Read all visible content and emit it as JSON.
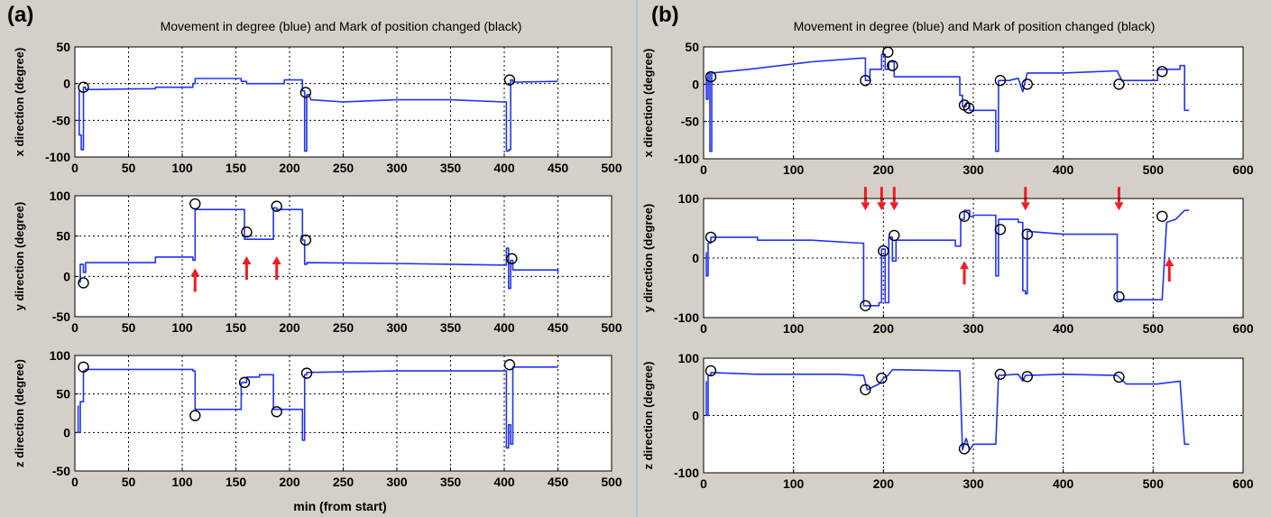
{
  "colors": {
    "background": "#d4d0c8",
    "series": "#2233ee",
    "marker": "#000000",
    "arrow": "#ee1c24",
    "plot_bg": "#ffffff"
  },
  "panels": [
    {
      "letter": "(a)",
      "title": "Movement in degree (blue) and Mark of position changed (black)",
      "xlabel": "min (from start)"
    },
    {
      "letter": "(b)",
      "title": "Movement in degree (blue) and Mark of position changed (black)",
      "xlabel": "min (from start)"
    }
  ],
  "chart_data": [
    {
      "type": "line",
      "panel": "(a)",
      "ylabel": "x direction (degree)",
      "xlim": [
        0,
        500
      ],
      "ylim": [
        -100,
        50
      ],
      "xticks": [
        0,
        50,
        100,
        150,
        200,
        250,
        300,
        350,
        400,
        450,
        500
      ],
      "yticks": [
        -100,
        -50,
        0,
        50
      ],
      "grid": true,
      "series": [
        {
          "x": [
            4,
            4,
            6,
            6,
            8,
            8,
            10,
            10,
            20,
            60,
            75,
            75,
            110,
            110,
            112,
            112,
            155,
            155,
            160,
            160,
            195,
            195,
            212,
            212,
            214,
            214,
            216,
            216,
            218,
            220,
            250,
            300,
            350,
            400,
            402,
            402,
            404,
            404,
            406,
            406,
            408,
            408,
            410,
            450
          ],
          "y": [
            -10,
            -70,
            -70,
            -90,
            -90,
            -5,
            -5,
            -8,
            -8,
            -7,
            -7,
            -5,
            -5,
            0,
            0,
            7,
            7,
            3,
            3,
            0,
            0,
            5,
            5,
            -10,
            -10,
            -92,
            -92,
            -15,
            -15,
            -22,
            -25,
            -22,
            -22,
            -25,
            -25,
            -92,
            -92,
            -90,
            -90,
            5,
            5,
            2,
            2,
            3
          ]
        }
      ],
      "markers": {
        "x": [
          8,
          215,
          405
        ],
        "y": [
          -5,
          -12,
          5
        ]
      },
      "arrows": {
        "x": [],
        "y": [],
        "dir": []
      }
    },
    {
      "type": "line",
      "panel": "(a)",
      "ylabel": "y direction (degree)",
      "xlim": [
        0,
        500
      ],
      "ylim": [
        -50,
        100
      ],
      "xticks": [
        0,
        50,
        100,
        150,
        200,
        250,
        300,
        350,
        400,
        450,
        500
      ],
      "yticks": [
        -50,
        0,
        50,
        100
      ],
      "grid": true,
      "series": [
        {
          "x": [
            5,
            5,
            8,
            8,
            10,
            10,
            75,
            75,
            110,
            110,
            112,
            112,
            158,
            158,
            185,
            185,
            188,
            188,
            212,
            212,
            214,
            214,
            216,
            216,
            300,
            400,
            402,
            402,
            404,
            404,
            406,
            406,
            408,
            408,
            450,
            450
          ],
          "y": [
            -8,
            15,
            15,
            5,
            5,
            17,
            17,
            24,
            24,
            20,
            20,
            83,
            83,
            46,
            46,
            85,
            85,
            83,
            83,
            45,
            45,
            15,
            15,
            17,
            16,
            14,
            14,
            35,
            35,
            -15,
            -15,
            20,
            20,
            8,
            8,
            5
          ]
        }
      ],
      "markers": {
        "x": [
          8,
          112,
          160,
          188,
          215,
          407
        ],
        "y": [
          -8,
          90,
          55,
          87,
          45,
          22
        ]
      },
      "arrows": {
        "x": [
          112,
          160,
          188
        ],
        "y": [
          10,
          25,
          25
        ],
        "dir": [
          "up",
          "up",
          "up"
        ]
      }
    },
    {
      "type": "line",
      "panel": "(a)",
      "ylabel": "z direction (degree)",
      "xlim": [
        0,
        500
      ],
      "ylim": [
        -50,
        100
      ],
      "xticks": [
        0,
        50,
        100,
        150,
        200,
        250,
        300,
        350,
        400,
        450,
        500
      ],
      "yticks": [
        -50,
        0,
        50,
        100
      ],
      "grid": true,
      "series": [
        {
          "x": [
            3,
            3,
            5,
            5,
            8,
            8,
            10,
            10,
            110,
            110,
            112,
            112,
            155,
            155,
            160,
            160,
            172,
            172,
            185,
            185,
            212,
            212,
            214,
            214,
            216,
            216,
            300,
            400,
            402,
            402,
            404,
            404,
            406,
            406,
            408,
            408,
            450
          ],
          "y": [
            35,
            0,
            0,
            40,
            40,
            80,
            80,
            82,
            82,
            80,
            80,
            30,
            30,
            65,
            65,
            72,
            72,
            75,
            75,
            30,
            30,
            -10,
            -10,
            75,
            75,
            78,
            80,
            80,
            80,
            -20,
            -20,
            10,
            10,
            -15,
            -15,
            85,
            85
          ]
        }
      ],
      "markers": {
        "x": [
          8,
          112,
          158,
          188,
          216,
          405
        ],
        "y": [
          85,
          22,
          65,
          27,
          77,
          88
        ]
      },
      "arrows": {
        "x": [],
        "y": [],
        "dir": []
      }
    },
    {
      "type": "line",
      "panel": "(b)",
      "ylabel": "x direction (degree)",
      "xlim": [
        0,
        600
      ],
      "ylim": [
        -100,
        50
      ],
      "xticks": [
        0,
        100,
        200,
        300,
        400,
        500,
        600
      ],
      "yticks": [
        -100,
        -50,
        0,
        50
      ],
      "grid": true,
      "series": [
        {
          "x": [
            3,
            3,
            5,
            5,
            7,
            7,
            9,
            9,
            50,
            120,
            175,
            180,
            180,
            185,
            185,
            198,
            198,
            202,
            202,
            206,
            206,
            212,
            212,
            285,
            285,
            288,
            288,
            292,
            292,
            296,
            296,
            300,
            300,
            325,
            325,
            328,
            328,
            340,
            350,
            350,
            355,
            355,
            360,
            360,
            400,
            460,
            460,
            465,
            465,
            500,
            505,
            505,
            530,
            530,
            535,
            535,
            540
          ],
          "y": [
            10,
            -20,
            -20,
            15,
            15,
            -90,
            -90,
            15,
            20,
            30,
            35,
            35,
            5,
            5,
            20,
            20,
            40,
            40,
            20,
            20,
            30,
            30,
            10,
            10,
            -15,
            -15,
            -30,
            -30,
            -25,
            -25,
            -35,
            -35,
            -35,
            -35,
            -90,
            -90,
            5,
            5,
            8,
            8,
            -10,
            -10,
            15,
            15,
            15,
            18,
            18,
            5,
            5,
            5,
            5,
            20,
            20,
            25,
            25,
            -35,
            -35
          ]
        }
      ],
      "markers": {
        "x": [
          8,
          180,
          205,
          210,
          290,
          295,
          330,
          360,
          462,
          510
        ],
        "y": [
          10,
          5,
          43,
          25,
          -28,
          -32,
          5,
          0,
          0,
          17
        ]
      },
      "arrows": {
        "x": [],
        "y": [],
        "dir": []
      }
    },
    {
      "type": "line",
      "panel": "(b)",
      "ylabel": "y direction (degree)",
      "xlim": [
        0,
        600
      ],
      "ylim": [
        -100,
        100
      ],
      "xticks": [
        0,
        100,
        200,
        300,
        400,
        500,
        600
      ],
      "yticks": [
        -100,
        0,
        100
      ],
      "grid": true,
      "series": [
        {
          "x": [
            3,
            3,
            5,
            5,
            8,
            8,
            60,
            60,
            120,
            175,
            178,
            178,
            195,
            195,
            198,
            198,
            202,
            202,
            206,
            206,
            210,
            210,
            214,
            214,
            280,
            280,
            286,
            286,
            290,
            290,
            296,
            296,
            300,
            300,
            325,
            325,
            328,
            328,
            350,
            350,
            355,
            355,
            358,
            358,
            360,
            360,
            400,
            460,
            460,
            465,
            465,
            510,
            510,
            515,
            515,
            525,
            525,
            535,
            535,
            540
          ],
          "y": [
            10,
            -30,
            -30,
            25,
            25,
            35,
            35,
            30,
            30,
            25,
            25,
            -80,
            -80,
            -75,
            -75,
            15,
            15,
            -75,
            -75,
            35,
            35,
            -5,
            -5,
            30,
            30,
            20,
            20,
            65,
            65,
            80,
            80,
            70,
            70,
            72,
            72,
            -30,
            -30,
            65,
            65,
            60,
            60,
            -55,
            -55,
            -60,
            -60,
            45,
            40,
            40,
            -70,
            -70,
            -70,
            -70,
            -70,
            60,
            60,
            65,
            65,
            80,
            80,
            80
          ]
        }
      ],
      "markers": {
        "x": [
          8,
          180,
          200,
          212,
          290,
          330,
          360,
          462,
          510
        ],
        "y": [
          35,
          -80,
          12,
          38,
          70,
          48,
          40,
          -65,
          70
        ]
      },
      "arrows": {
        "x": [
          180,
          198,
          212,
          290,
          358,
          462,
          518
        ],
        "y": [
          80,
          80,
          80,
          -5,
          80,
          80,
          0
        ],
        "dir": [
          "down",
          "down",
          "down",
          "up",
          "down",
          "down",
          "up"
        ]
      }
    },
    {
      "type": "line",
      "panel": "(b)",
      "ylabel": "z direction (degree)",
      "xlim": [
        0,
        600
      ],
      "ylim": [
        -100,
        100
      ],
      "xticks": [
        0,
        100,
        200,
        300,
        400,
        500,
        600
      ],
      "yticks": [
        -100,
        0,
        100
      ],
      "grid": true,
      "series": [
        {
          "x": [
            3,
            3,
            5,
            5,
            8,
            8,
            60,
            150,
            178,
            178,
            182,
            182,
            195,
            195,
            200,
            200,
            205,
            205,
            210,
            210,
            285,
            285,
            288,
            288,
            292,
            292,
            296,
            296,
            300,
            300,
            325,
            325,
            328,
            328,
            350,
            350,
            355,
            355,
            358,
            358,
            400,
            460,
            460,
            470,
            470,
            505,
            505,
            530,
            530,
            535,
            535,
            540
          ],
          "y": [
            60,
            0,
            0,
            70,
            70,
            75,
            72,
            72,
            70,
            70,
            45,
            45,
            55,
            55,
            65,
            65,
            70,
            70,
            80,
            80,
            78,
            78,
            -60,
            -60,
            -40,
            -40,
            -60,
            -60,
            -50,
            -50,
            -50,
            -50,
            70,
            70,
            72,
            72,
            60,
            60,
            70,
            70,
            72,
            70,
            70,
            55,
            55,
            55,
            55,
            60,
            60,
            -50,
            -50,
            -50
          ]
        }
      ],
      "markers": {
        "x": [
          8,
          180,
          198,
          290,
          330,
          360,
          462
        ],
        "y": [
          78,
          45,
          65,
          -58,
          72,
          68,
          67
        ]
      },
      "arrows": {
        "x": [],
        "y": [],
        "dir": []
      }
    }
  ]
}
